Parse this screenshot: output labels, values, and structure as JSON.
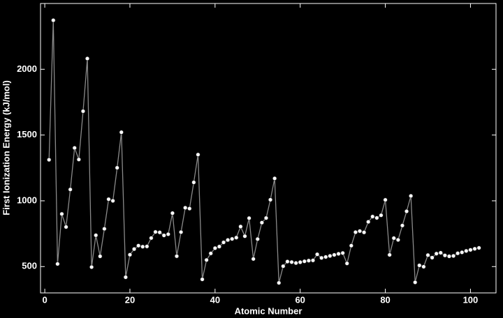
{
  "chart_data": {
    "type": "line",
    "x_label": "Atomic Number",
    "y_label": "First Ionization Energy (kJ/mol)",
    "x": [
      1,
      2,
      3,
      4,
      5,
      6,
      7,
      8,
      9,
      10,
      11,
      12,
      13,
      14,
      15,
      16,
      17,
      18,
      19,
      20,
      21,
      22,
      23,
      24,
      25,
      26,
      27,
      28,
      29,
      30,
      31,
      32,
      33,
      34,
      35,
      36,
      37,
      38,
      39,
      40,
      41,
      42,
      43,
      44,
      45,
      46,
      47,
      48,
      49,
      50,
      51,
      52,
      53,
      54,
      55,
      56,
      57,
      58,
      59,
      60,
      61,
      62,
      63,
      64,
      65,
      66,
      67,
      68,
      69,
      70,
      71,
      72,
      73,
      74,
      75,
      76,
      77,
      78,
      79,
      80,
      81,
      82,
      83,
      84,
      85,
      86,
      87,
      88,
      89,
      90,
      91,
      92,
      93,
      94,
      95,
      96,
      97,
      98,
      99,
      100,
      101,
      102
    ],
    "values": [
      1312,
      2372,
      520,
      900,
      801,
      1086,
      1402,
      1314,
      1681,
      2081,
      496,
      738,
      578,
      787,
      1012,
      1000,
      1251,
      1521,
      419,
      590,
      633,
      659,
      651,
      653,
      717,
      763,
      760,
      737,
      746,
      906,
      579,
      762,
      947,
      941,
      1140,
      1351,
      403,
      550,
      600,
      640,
      652,
      684,
      702,
      710,
      720,
      804,
      731,
      868,
      558,
      709,
      834,
      869,
      1008,
      1170,
      376,
      503,
      538,
      534,
      527,
      533,
      540,
      545,
      547,
      593,
      566,
      573,
      581,
      589,
      597,
      603,
      524,
      659,
      761,
      770,
      760,
      840,
      880,
      870,
      890,
      1007,
      589,
      716,
      703,
      812,
      920,
      1037,
      380,
      509,
      499,
      587,
      568,
      598,
      605,
      585,
      578,
      581,
      601,
      608,
      619,
      627,
      635,
      642
    ],
    "line_color": "#8a8a8a",
    "marker_color": "#ffffff",
    "xlim": [
      -1,
      106
    ],
    "ylim": [
      300,
      2500
    ],
    "xticks": [
      0,
      20,
      40,
      60,
      80,
      100
    ],
    "yticks": [
      500,
      1000,
      1500,
      2000
    ]
  }
}
